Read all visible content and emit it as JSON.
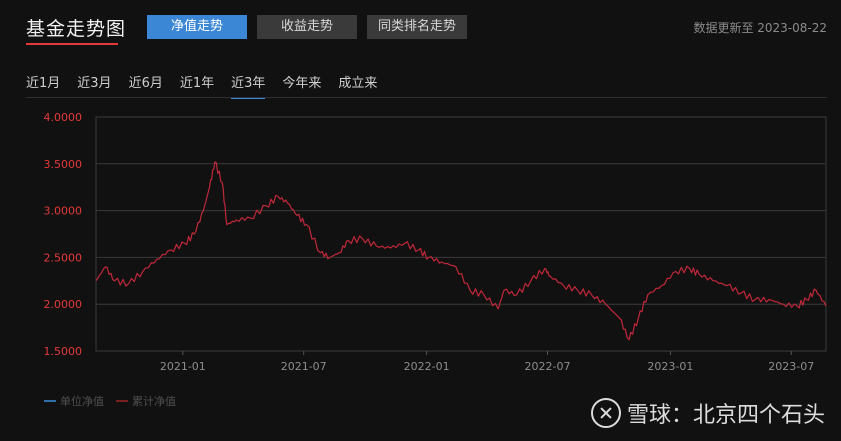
{
  "header": {
    "title": "基金走势图",
    "tabs": [
      {
        "label": "净值走势",
        "active": true
      },
      {
        "label": "收益走势",
        "active": false
      },
      {
        "label": "同类排名走势",
        "active": false
      }
    ],
    "update_text": "数据更新至 2023-08-22"
  },
  "ranges": [
    {
      "label": "近1月",
      "active": false
    },
    {
      "label": "近3月",
      "active": false
    },
    {
      "label": "近6月",
      "active": false
    },
    {
      "label": "近1年",
      "active": false
    },
    {
      "label": "近3年",
      "active": true
    },
    {
      "label": "今年来",
      "active": false
    },
    {
      "label": "成立来",
      "active": false
    }
  ],
  "legend": [
    {
      "label": "单位净值",
      "color": "#2f6fa8"
    },
    {
      "label": "累计净值",
      "color": "#7a1f1f"
    }
  ],
  "watermark": {
    "text": "雪球：北京四个石头"
  },
  "colors": {
    "accent": "#3b87d6",
    "series": "#c0283a",
    "y_tick": "#e23a3a",
    "grid": "#3a3a3a"
  },
  "chart_data": {
    "type": "line",
    "ylim": [
      1.5,
      4.0
    ],
    "y_ticks": [
      "4.0000",
      "3.5000",
      "3.0000",
      "2.5000",
      "2.0000",
      "1.5000"
    ],
    "x_tick_labels": [
      "2021-01",
      "2021-07",
      "2022-01",
      "2022-07",
      "2023-01",
      "2023-07"
    ],
    "x_tick_dates": [
      "2021-01-01",
      "2021-07-01",
      "2022-01-01",
      "2022-07-01",
      "2023-01-01",
      "2023-07-01"
    ],
    "x_range": [
      "2020-08-24",
      "2023-08-22"
    ],
    "series": [
      {
        "name": "累计净值",
        "dates": [
          "2020-08-24",
          "2020-09-07",
          "2020-09-21",
          "2020-10-12",
          "2020-11-02",
          "2020-11-23",
          "2020-12-14",
          "2021-01-04",
          "2021-01-18",
          "2021-02-01",
          "2021-02-10",
          "2021-02-18",
          "2021-03-01",
          "2021-03-08",
          "2021-03-22",
          "2021-04-12",
          "2021-05-06",
          "2021-05-24",
          "2021-06-07",
          "2021-06-21",
          "2021-07-05",
          "2021-07-26",
          "2021-08-09",
          "2021-08-23",
          "2021-09-06",
          "2021-09-27",
          "2021-10-18",
          "2021-11-08",
          "2021-11-29",
          "2021-12-20",
          "2022-01-04",
          "2022-01-24",
          "2022-02-14",
          "2022-03-07",
          "2022-03-28",
          "2022-04-18",
          "2022-04-27",
          "2022-05-16",
          "2022-06-06",
          "2022-06-27",
          "2022-07-05",
          "2022-07-25",
          "2022-08-15",
          "2022-09-05",
          "2022-09-26",
          "2022-10-17",
          "2022-10-31",
          "2022-11-14",
          "2022-11-28",
          "2022-12-19",
          "2023-01-09",
          "2023-01-30",
          "2023-02-13",
          "2023-03-06",
          "2023-03-27",
          "2023-04-17",
          "2023-05-08",
          "2023-05-29",
          "2023-06-19",
          "2023-07-10",
          "2023-07-24",
          "2023-08-07",
          "2023-08-22"
        ],
        "values": [
          2.25,
          2.4,
          2.25,
          2.22,
          2.35,
          2.48,
          2.58,
          2.65,
          2.75,
          3.0,
          3.25,
          3.52,
          3.3,
          2.85,
          2.9,
          2.92,
          3.05,
          3.15,
          3.08,
          2.95,
          2.85,
          2.55,
          2.5,
          2.55,
          2.68,
          2.7,
          2.62,
          2.6,
          2.65,
          2.58,
          2.5,
          2.45,
          2.4,
          2.15,
          2.1,
          1.95,
          2.15,
          2.1,
          2.25,
          2.38,
          2.3,
          2.2,
          2.15,
          2.1,
          2.0,
          1.85,
          1.62,
          1.85,
          2.1,
          2.2,
          2.35,
          2.38,
          2.32,
          2.25,
          2.2,
          2.12,
          2.05,
          2.05,
          2.0,
          1.98,
          2.05,
          2.15,
          1.98
        ]
      }
    ]
  }
}
